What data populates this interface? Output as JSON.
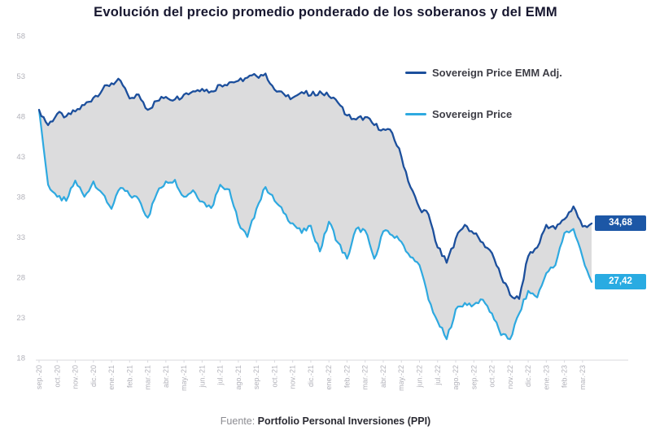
{
  "title": "Evolución del precio promedio ponderado de los soberanos y del EMM",
  "legend": [
    {
      "id": "emm_adj",
      "label": "Sovereign Price EMM Adj."
    },
    {
      "id": "sovereign",
      "label": "Sovereign Price"
    }
  ],
  "end_labels": {
    "emm_adj": "34,68",
    "sovereign": "27,42"
  },
  "footer": {
    "prefix": "Fuente:",
    "source": "Portfolio Personal Inversiones (PPI)"
  },
  "colors": {
    "emm_line": "#1C4F9C",
    "sovereign_line": "#2EA9E0",
    "band_fill": "#DCDCDD",
    "axis_line": "#D9D9DE",
    "tick_text": "#B2B2BA",
    "emm_box_bg": "#1C57A6",
    "sovereign_box_bg": "#29ABE2",
    "title_text": "#17172F",
    "legend_text": "#3E3E46",
    "footer_prefix": "#8C8C92",
    "footer_source": "#2B2B33"
  },
  "chart_data": {
    "type": "line",
    "title": "Evolución del precio promedio ponderado de los soberanos y del EMM",
    "xlabel": "",
    "ylabel": "",
    "ylim": [
      18,
      58
    ],
    "yticks": [
      58,
      53,
      48,
      43,
      38,
      33,
      28,
      23,
      18
    ],
    "grid": false,
    "legend_position": "top-right",
    "points_per_month": 2,
    "categories": [
      "sep.-20",
      "oct.-20",
      "nov.-20",
      "dic.-20",
      "ene.-21",
      "feb.-21",
      "mar.-21",
      "abr.-21",
      "may.-21",
      "jun.-21",
      "jul.-21",
      "ago.-21",
      "sep.-21",
      "oct.-21",
      "nov.-21",
      "dic.-21",
      "ene.-22",
      "feb.-22",
      "mar.-22",
      "abr.-22",
      "may.-22",
      "jun.-22",
      "jul.-22",
      "ago.-22",
      "sep.-22",
      "oct.-22",
      "nov.-22",
      "dic.-22",
      "ene.-23",
      "feb.-23",
      "mar.-23"
    ],
    "series": [
      {
        "name": "Sovereign Price EMM Adj.",
        "last_value": 34.68,
        "values": [
          48.8,
          46.9,
          48.3,
          48.0,
          48.6,
          49.4,
          50.3,
          51.3,
          52.1,
          52.4,
          50.2,
          50.7,
          48.8,
          49.9,
          50.4,
          50.1,
          50.7,
          51.1,
          51.4,
          51.1,
          51.9,
          52.2,
          52.4,
          52.8,
          53.0,
          53.3,
          51.3,
          50.8,
          50.3,
          51.0,
          50.6,
          51.1,
          50.5,
          49.7,
          48.1,
          47.6,
          47.9,
          46.9,
          46.4,
          45.9,
          43.0,
          39.2,
          36.6,
          35.8,
          31.7,
          29.8,
          32.8,
          34.5,
          33.4,
          32.3,
          31.0,
          28.1,
          25.8,
          25.3,
          30.6,
          31.7,
          34.5,
          34.0,
          35.2,
          36.8,
          34.3,
          34.68
        ]
      },
      {
        "name": "Sovereign Price",
        "last_value": 27.42,
        "values": [
          48.8,
          39.5,
          38.0,
          37.5,
          40.0,
          38.0,
          39.9,
          38.4,
          36.5,
          39.1,
          38.2,
          37.7,
          35.4,
          38.4,
          39.9,
          40.1,
          38.0,
          38.8,
          37.4,
          36.6,
          39.5,
          38.9,
          34.8,
          33.0,
          36.5,
          39.2,
          37.5,
          36.0,
          34.7,
          33.5,
          34.4,
          31.2,
          34.9,
          32.3,
          30.3,
          34.0,
          33.8,
          30.3,
          33.7,
          33.2,
          32.4,
          30.5,
          29.5,
          25.2,
          22.5,
          20.3,
          24.0,
          24.8,
          24.6,
          25.2,
          23.5,
          20.8,
          20.3,
          23.5,
          26.3,
          25.5,
          28.5,
          29.5,
          33.5,
          34.0,
          30.5,
          27.42
        ]
      }
    ]
  }
}
